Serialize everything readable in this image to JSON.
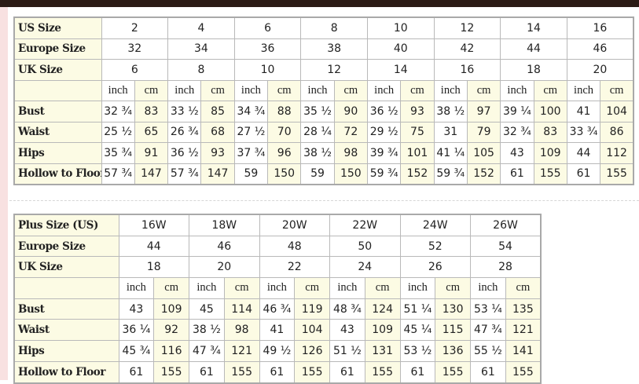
{
  "colors": {
    "top_bar": "#2b1b15",
    "side_strip": "#f8e1e1",
    "label_bg": "#fcfbe4",
    "border": "#a9a9a9"
  },
  "units": {
    "inch": "inch",
    "cm": "cm"
  },
  "standard": {
    "size_rows": [
      {
        "label": "US Size",
        "values": [
          "2",
          "4",
          "6",
          "8",
          "10",
          "12",
          "14",
          "16"
        ]
      },
      {
        "label": "Europe Size",
        "values": [
          "32",
          "34",
          "36",
          "38",
          "40",
          "42",
          "44",
          "46"
        ]
      },
      {
        "label": "UK Size",
        "values": [
          "6",
          "8",
          "10",
          "12",
          "14",
          "16",
          "18",
          "20"
        ]
      }
    ],
    "measure_rows": [
      {
        "label": "Bust",
        "values": [
          "32 ¾",
          "83",
          "33 ½",
          "85",
          "34 ¾",
          "88",
          "35 ½",
          "90",
          "36 ½",
          "93",
          "38 ½",
          "97",
          "39 ¼",
          "100",
          "41",
          "104"
        ]
      },
      {
        "label": "Waist",
        "values": [
          "25 ½",
          "65",
          "26 ¾",
          "68",
          "27 ½",
          "70",
          "28 ¼",
          "72",
          "29 ½",
          "75",
          "31",
          "79",
          "32 ¾",
          "83",
          "33 ¾",
          "86"
        ]
      },
      {
        "label": "Hips",
        "values": [
          "35 ¾",
          "91",
          "36 ½",
          "93",
          "37 ¾",
          "96",
          "38 ½",
          "98",
          "39 ¾",
          "101",
          "41 ¼",
          "105",
          "43",
          "109",
          "44",
          "112"
        ]
      },
      {
        "label": "Hollow to Floor",
        "values": [
          "57 ¾",
          "147",
          "57 ¾",
          "147",
          "59",
          "150",
          "59",
          "150",
          "59 ¾",
          "152",
          "59 ¾",
          "152",
          "61",
          "155",
          "61",
          "155"
        ]
      }
    ]
  },
  "plus": {
    "size_rows": [
      {
        "label": "Plus Size (US)",
        "values": [
          "16W",
          "18W",
          "20W",
          "22W",
          "24W",
          "26W"
        ]
      },
      {
        "label": "Europe Size",
        "values": [
          "44",
          "46",
          "48",
          "50",
          "52",
          "54"
        ]
      },
      {
        "label": "UK Size",
        "values": [
          "18",
          "20",
          "22",
          "24",
          "26",
          "28"
        ]
      }
    ],
    "measure_rows": [
      {
        "label": "Bust",
        "values": [
          "43",
          "109",
          "45",
          "114",
          "46 ¾",
          "119",
          "48 ¾",
          "124",
          "51 ¼",
          "130",
          "53 ¼",
          "135"
        ]
      },
      {
        "label": "Waist",
        "values": [
          "36 ¼",
          "92",
          "38 ½",
          "98",
          "41",
          "104",
          "43",
          "109",
          "45 ¼",
          "115",
          "47 ¾",
          "121"
        ]
      },
      {
        "label": "Hips",
        "values": [
          "45 ¾",
          "116",
          "47 ¾",
          "121",
          "49 ½",
          "126",
          "51 ½",
          "131",
          "53 ½",
          "136",
          "55 ½",
          "141"
        ]
      },
      {
        "label": "Hollow to Floor",
        "values": [
          "61",
          "155",
          "61",
          "155",
          "61",
          "155",
          "61",
          "155",
          "61",
          "155",
          "61",
          "155"
        ]
      }
    ]
  }
}
